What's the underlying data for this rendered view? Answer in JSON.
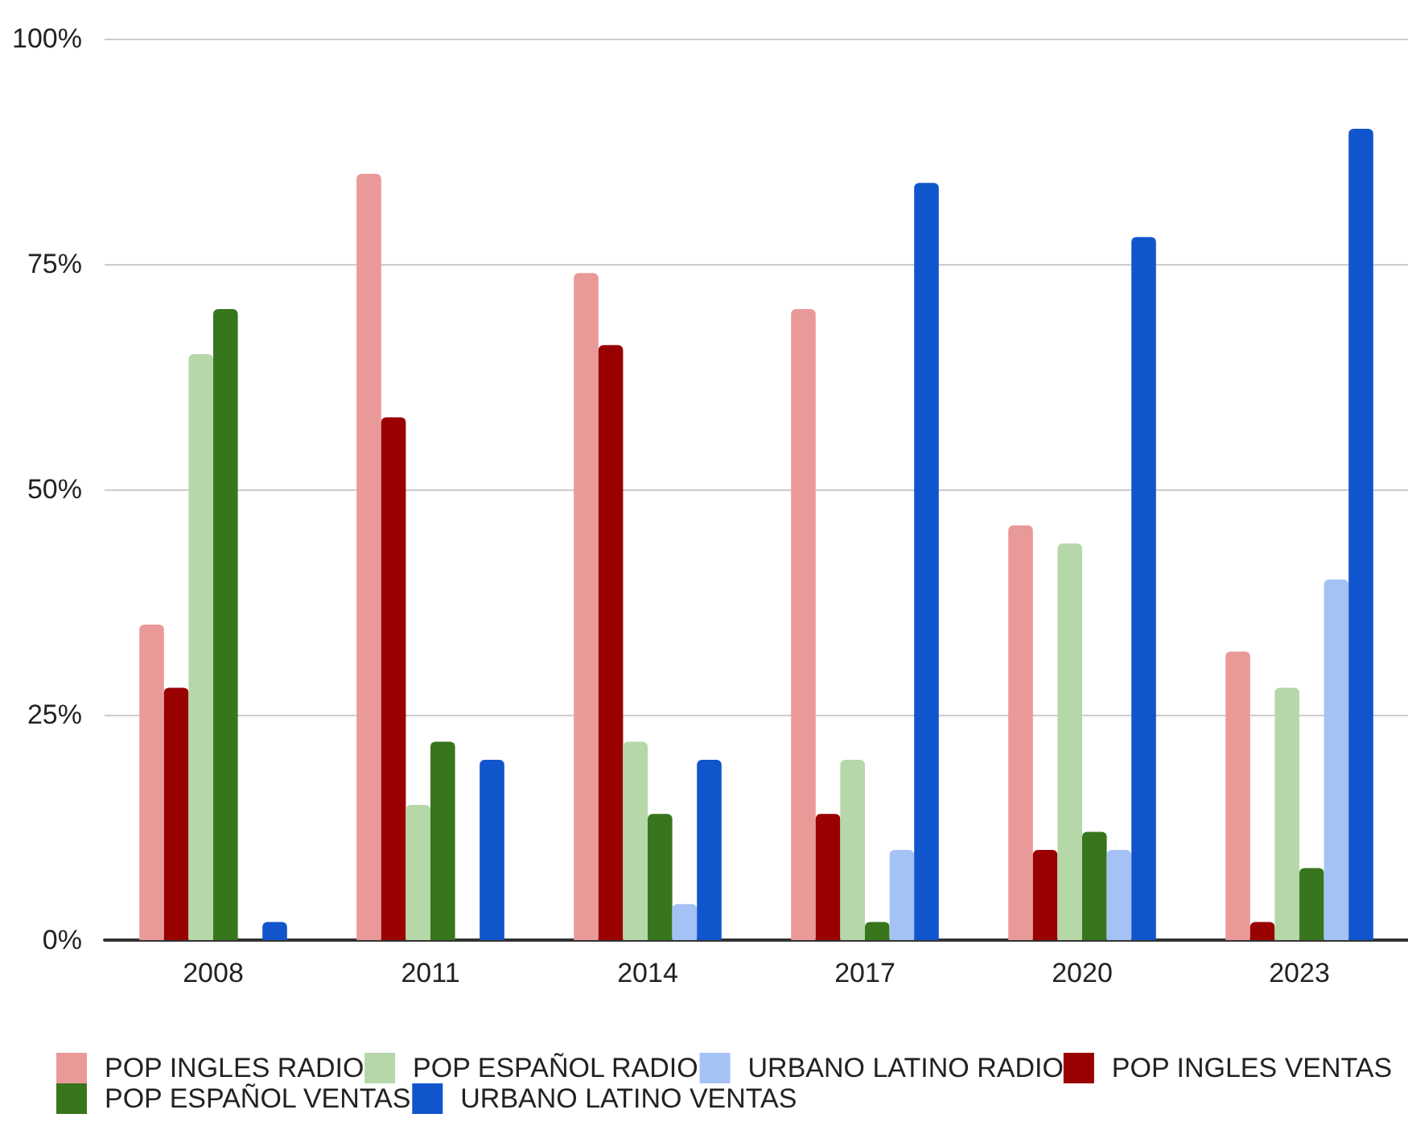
{
  "chart_data": {
    "type": "bar",
    "categories": [
      "2008",
      "2011",
      "2014",
      "2017",
      "2020",
      "2023"
    ],
    "series": [
      {
        "name": "POP INGLES RADIO",
        "color": "#ea9999",
        "values": [
          35,
          85,
          74,
          70,
          46,
          32
        ]
      },
      {
        "name": "POP INGLES VENTAS",
        "color": "#990000",
        "values": [
          28,
          58,
          66,
          14,
          10,
          2
        ]
      },
      {
        "name": "POP ESPAÑOL RADIO",
        "color": "#b6d7a8",
        "values": [
          65,
          15,
          22,
          20,
          44,
          28
        ]
      },
      {
        "name": "POP ESPAÑOL VENTAS",
        "color": "#38761d",
        "values": [
          70,
          22,
          14,
          2,
          12,
          8
        ]
      },
      {
        "name": "URBANO LATINO RADIO",
        "color": "#a4c2f4",
        "values": [
          null,
          null,
          4,
          10,
          10,
          40
        ]
      },
      {
        "name": "URBANO LATINO VENTAS",
        "color": "#1155cc",
        "values": [
          2,
          20,
          20,
          84,
          78,
          90
        ]
      }
    ],
    "ylim": [
      0,
      100
    ],
    "yticks": [
      {
        "value": 0,
        "label": "0%"
      },
      {
        "value": 25,
        "label": "25%"
      },
      {
        "value": 50,
        "label": "50%"
      },
      {
        "value": 75,
        "label": "75%"
      },
      {
        "value": 100,
        "label": "100%"
      }
    ],
    "grid": "y",
    "legend": "bottom"
  }
}
